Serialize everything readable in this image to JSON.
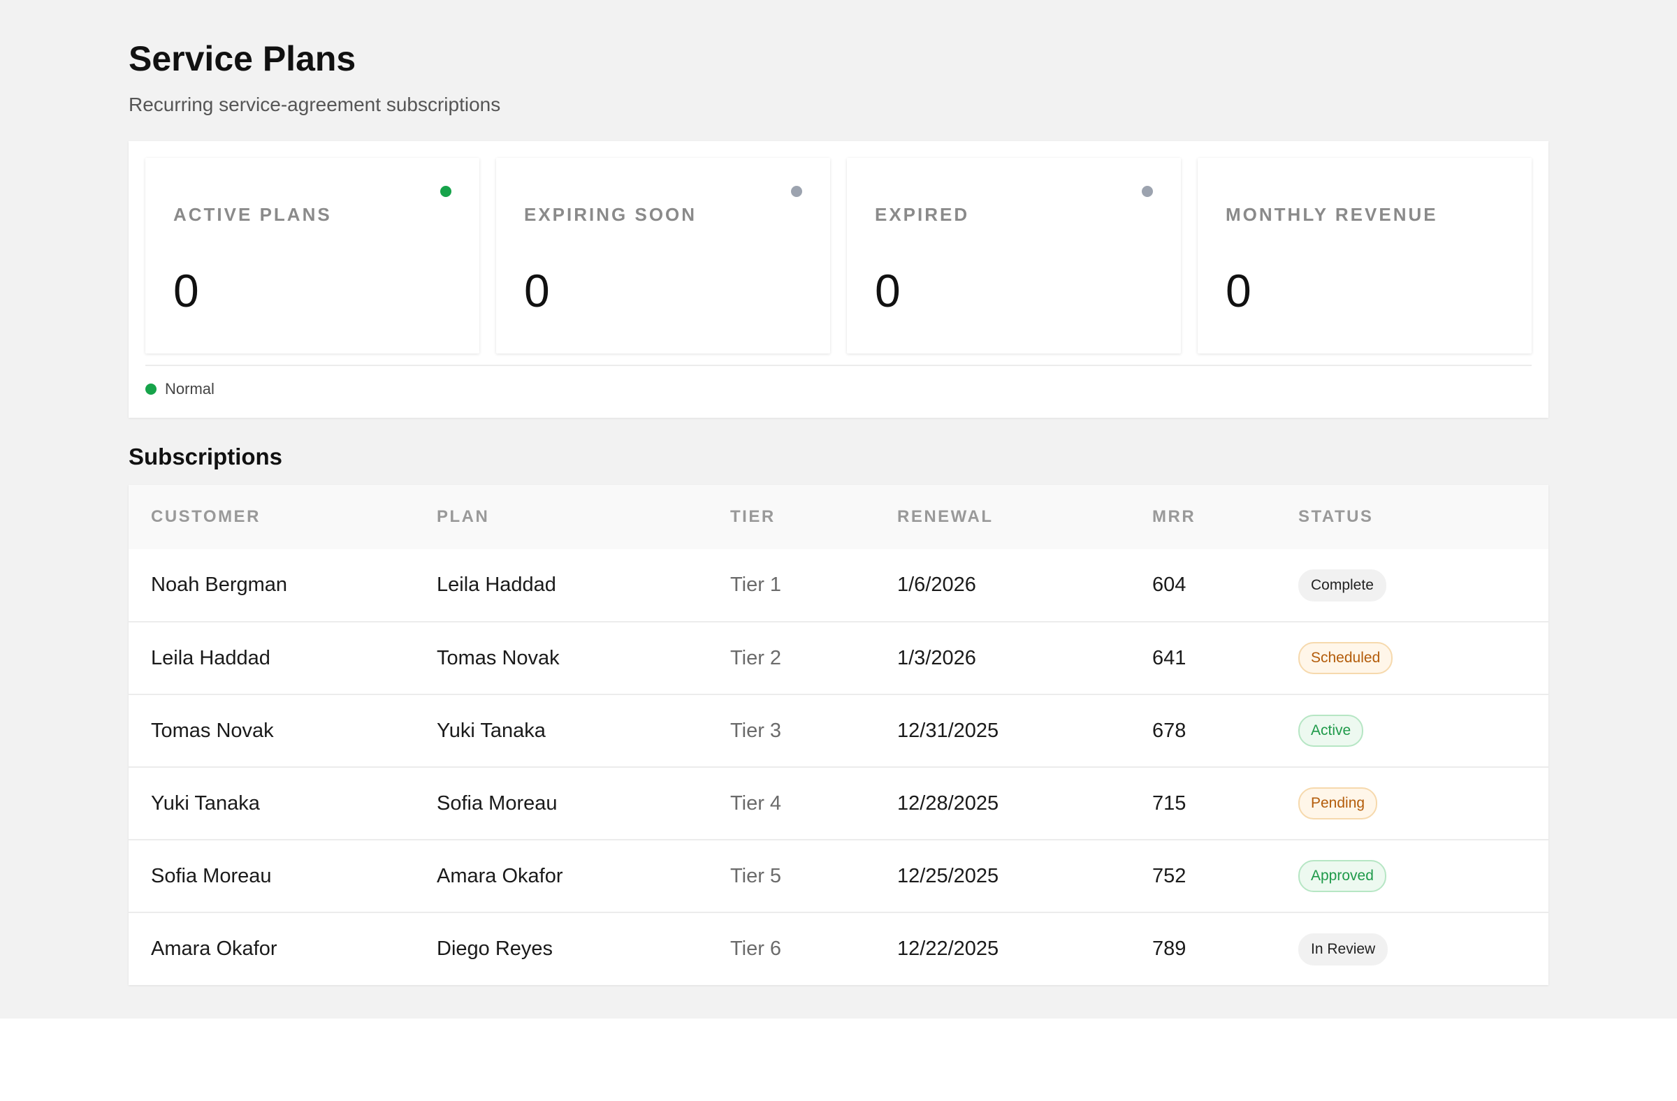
{
  "header": {
    "title": "Service Plans",
    "subtitle": "Recurring service-agreement subscriptions"
  },
  "kpis": [
    {
      "label": "ACTIVE PLANS",
      "value": "0",
      "dot_color": "#16a34a"
    },
    {
      "label": "EXPIRING SOON",
      "value": "0",
      "dot_color": "#9ca3af"
    },
    {
      "label": "EXPIRED",
      "value": "0",
      "dot_color": "#9ca3af"
    },
    {
      "label": "MONTHLY REVENUE",
      "value": "0"
    }
  ],
  "legend": {
    "label": "Normal",
    "color": "#16a34a"
  },
  "subscriptions": {
    "title": "Subscriptions",
    "columns": [
      "CUSTOMER",
      "PLAN",
      "TIER",
      "RENEWAL",
      "MRR",
      "STATUS"
    ],
    "rows": [
      {
        "customer": "Noah Bergman",
        "plan": "Leila Haddad",
        "tier": "Tier 1",
        "renewal": "1/6/2026",
        "mrr": "604",
        "status": "Complete",
        "status_tone": "neutral"
      },
      {
        "customer": "Leila Haddad",
        "plan": "Tomas Novak",
        "tier": "Tier 2",
        "renewal": "1/3/2026",
        "mrr": "641",
        "status": "Scheduled",
        "status_tone": "orange"
      },
      {
        "customer": "Tomas Novak",
        "plan": "Yuki Tanaka",
        "tier": "Tier 3",
        "renewal": "12/31/2025",
        "mrr": "678",
        "status": "Active",
        "status_tone": "green"
      },
      {
        "customer": "Yuki Tanaka",
        "plan": "Sofia Moreau",
        "tier": "Tier 4",
        "renewal": "12/28/2025",
        "mrr": "715",
        "status": "Pending",
        "status_tone": "orange"
      },
      {
        "customer": "Sofia Moreau",
        "plan": "Amara Okafor",
        "tier": "Tier 5",
        "renewal": "12/25/2025",
        "mrr": "752",
        "status": "Approved",
        "status_tone": "green"
      },
      {
        "customer": "Amara Okafor",
        "plan": "Diego Reyes",
        "tier": "Tier 6",
        "renewal": "12/22/2025",
        "mrr": "789",
        "status": "In Review",
        "status_tone": "neutral"
      }
    ]
  }
}
